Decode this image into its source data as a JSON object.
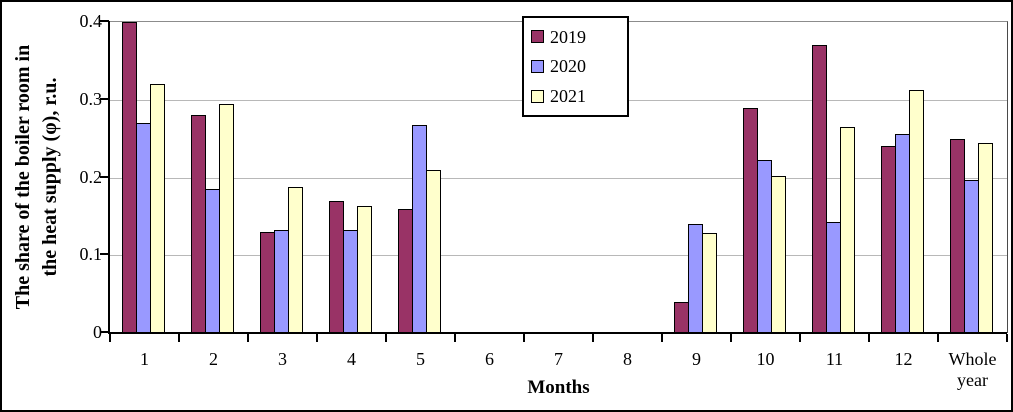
{
  "chart_data": {
    "type": "bar",
    "title": "",
    "categories": [
      "1",
      "2",
      "3",
      "4",
      "5",
      "6",
      "7",
      "8",
      "9",
      "10",
      "11",
      "12",
      "Whole year"
    ],
    "series": [
      {
        "name": "2019",
        "color": "#993366",
        "values": [
          0.4,
          0.28,
          0.13,
          0.17,
          0.16,
          0,
          0,
          0,
          0.04,
          0.29,
          0.37,
          0.24,
          0.25
        ]
      },
      {
        "name": "2020",
        "color": "#9999FF",
        "values": [
          0.27,
          0.185,
          0.132,
          0.133,
          0.268,
          0,
          0,
          0,
          0.14,
          0.222,
          0.143,
          0.256,
          0.197
        ]
      },
      {
        "name": "2021",
        "color": "#FFFFCC",
        "values": [
          0.32,
          0.295,
          0.188,
          0.163,
          0.21,
          0,
          0,
          0,
          0.129,
          0.202,
          0.265,
          0.313,
          0.244
        ]
      }
    ],
    "xlabel": "Months",
    "ylabel": "The share of the boiler room in the heat supply (φ), r.u.",
    "ylabel_lines": [
      "The share of the boiler room in",
      "the heat supply (φ), r.u."
    ],
    "ylim": [
      0,
      0.4
    ],
    "yticks": [
      0,
      0.1,
      0.2,
      0.3,
      0.4
    ],
    "ytick_labels": [
      "0",
      "0.1",
      "0.2",
      "0.3",
      "0.4"
    ],
    "grid": true,
    "legend_position": "inside-top-center",
    "bar_border_color": "#000000",
    "gridline_color": "#b8b8b8",
    "axis_color": "#000000"
  }
}
